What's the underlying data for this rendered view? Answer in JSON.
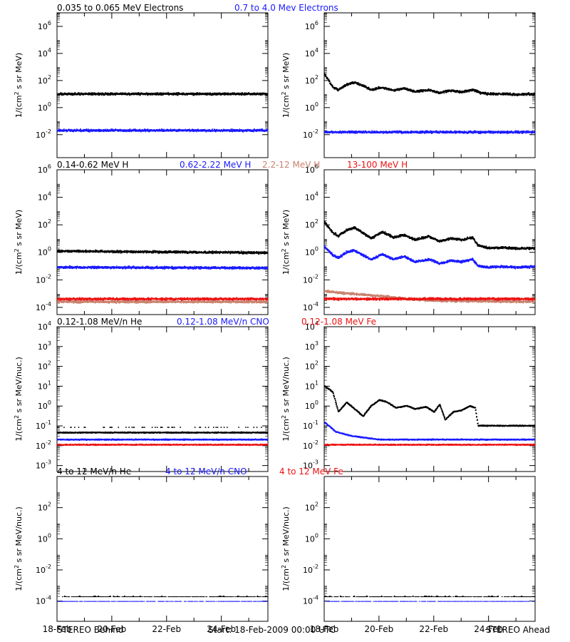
{
  "colors": {
    "black": "#000000",
    "blue": "#1a1aff",
    "tan": "#c8826e",
    "red": "#ee1111"
  },
  "headers": [
    [
      {
        "text": "0.035 to 0.065 MeV Electrons",
        "color": "black"
      },
      {
        "text": "0.7 to 4.0 Mev Electrons",
        "color": "blue"
      }
    ],
    [
      {
        "text": "0.14-0.62 MeV H",
        "color": "black"
      },
      {
        "text": "0.62-2.22 MeV H",
        "color": "blue"
      },
      {
        "text": "2.2-12 MeV H",
        "color": "tan"
      },
      {
        "text": "13-100 MeV H",
        "color": "red"
      }
    ],
    [
      {
        "text": "0.12-1.08 MeV/n He",
        "color": "black"
      },
      {
        "text": "0.12-1.08 MeV/n CNO",
        "color": "blue"
      },
      {
        "text": "0.12-1.08 MeV Fe",
        "color": "red"
      }
    ],
    [
      {
        "text": "4 to 12 MeV/n He",
        "color": "black"
      },
      {
        "text": "4 to 12 MeV/n CNO",
        "color": "blue"
      },
      {
        "text": "4 to 12 MeV Fe",
        "color": "red"
      }
    ]
  ],
  "footer": {
    "left": "STEREO Behind",
    "center": "Start: 18-Feb-2009 00:00 UTC",
    "right": "STEREO Ahead"
  },
  "chart_data": [
    {
      "type": "scatter",
      "spacecraft": "STEREO Behind",
      "ylabel": "1/(cm2 s sr MeV)",
      "scale": "log",
      "ylim": [
        0.0002,
        10000000
      ],
      "yticks": [
        "10-2",
        "100",
        "102",
        "104",
        "106"
      ],
      "x": "days since 18-Feb-2009",
      "xlim": [
        0,
        7.7
      ],
      "xticks": [
        "18-Feb",
        "20-Feb",
        "22-Feb",
        "24-Feb"
      ],
      "series": [
        {
          "name": "0.035 to 0.065 MeV Electrons",
          "color": "black",
          "anchors": [
            [
              0,
              10
            ],
            [
              7.7,
              10
            ]
          ]
        },
        {
          "name": "0.7 to 4.0 Mev Electrons",
          "color": "blue",
          "anchors": [
            [
              0,
              0.02
            ],
            [
              7.7,
              0.02
            ]
          ]
        }
      ]
    },
    {
      "type": "scatter",
      "spacecraft": "STEREO Ahead",
      "ylabel": "1/(cm2 s sr MeV)",
      "scale": "log",
      "ylim": [
        0.0002,
        10000000
      ],
      "yticks": [
        "10-2",
        "100",
        "102",
        "104",
        "106"
      ],
      "x": "days since 18-Feb-2009",
      "xlim": [
        0,
        7.7
      ],
      "xticks": [
        "18-Feb",
        "20-Feb",
        "22-Feb",
        "24-Feb"
      ],
      "series": [
        {
          "name": "0.035 to 0.065 MeV Electrons",
          "color": "black",
          "anchors": [
            [
              0,
              300
            ],
            [
              0.3,
              30
            ],
            [
              0.5,
              20
            ],
            [
              0.8,
              50
            ],
            [
              1.1,
              70
            ],
            [
              1.4,
              40
            ],
            [
              1.7,
              20
            ],
            [
              2.1,
              30
            ],
            [
              2.5,
              18
            ],
            [
              2.9,
              25
            ],
            [
              3.3,
              15
            ],
            [
              3.8,
              20
            ],
            [
              4.2,
              12
            ],
            [
              4.6,
              18
            ],
            [
              5.0,
              14
            ],
            [
              5.4,
              20
            ],
            [
              5.7,
              12
            ],
            [
              6.0,
              10
            ],
            [
              6.5,
              10
            ],
            [
              7.0,
              9
            ],
            [
              7.7,
              10
            ]
          ]
        },
        {
          "name": "0.7 to 4.0 Mev Electrons",
          "color": "blue",
          "anchors": [
            [
              0,
              0.015
            ],
            [
              7.7,
              0.015
            ]
          ]
        }
      ]
    },
    {
      "type": "scatter",
      "spacecraft": "STEREO Behind",
      "ylabel": "1/(cm2 s sr MeV)",
      "scale": "log",
      "ylim": [
        3e-05,
        1000000
      ],
      "yticks": [
        "10-4",
        "10-2",
        "100",
        "102",
        "104",
        "106"
      ],
      "x": "days since 18-Feb-2009",
      "xlim": [
        0,
        7.7
      ],
      "xticks": [
        "18-Feb",
        "20-Feb",
        "22-Feb",
        "24-Feb"
      ],
      "series": [
        {
          "name": "0.14-0.62 MeV H",
          "color": "black",
          "anchors": [
            [
              0,
              1.2
            ],
            [
              7.7,
              0.9
            ]
          ]
        },
        {
          "name": "0.62-2.22 MeV H",
          "color": "blue",
          "anchors": [
            [
              0,
              0.08
            ],
            [
              7.7,
              0.07
            ]
          ]
        },
        {
          "name": "2.2-12 MeV H",
          "color": "tan",
          "anchors": [
            [
              0,
              0.00025
            ],
            [
              7.7,
              0.00025
            ]
          ]
        },
        {
          "name": "13-100 MeV H",
          "color": "red",
          "anchors": [
            [
              0,
              0.0004
            ],
            [
              7.7,
              0.0004
            ]
          ]
        }
      ]
    },
    {
      "type": "scatter",
      "spacecraft": "STEREO Ahead",
      "ylabel": "1/(cm2 s sr MeV)",
      "scale": "log",
      "ylim": [
        3e-05,
        1000000
      ],
      "yticks": [
        "10-4",
        "10-2",
        "100",
        "102",
        "104",
        "106"
      ],
      "x": "days since 18-Feb-2009",
      "xlim": [
        0,
        7.7
      ],
      "xticks": [
        "18-Feb",
        "20-Feb",
        "22-Feb",
        "24-Feb"
      ],
      "series": [
        {
          "name": "0.14-0.62 MeV H",
          "color": "black",
          "anchors": [
            [
              0,
              150
            ],
            [
              0.3,
              25
            ],
            [
              0.5,
              15
            ],
            [
              0.8,
              40
            ],
            [
              1.1,
              60
            ],
            [
              1.4,
              25
            ],
            [
              1.7,
              10
            ],
            [
              2.1,
              30
            ],
            [
              2.5,
              12
            ],
            [
              2.9,
              18
            ],
            [
              3.3,
              8
            ],
            [
              3.8,
              14
            ],
            [
              4.2,
              6
            ],
            [
              4.6,
              10
            ],
            [
              5.0,
              8
            ],
            [
              5.4,
              12
            ],
            [
              5.6,
              3
            ],
            [
              6.0,
              2
            ],
            [
              6.5,
              2.2
            ],
            [
              7.0,
              1.8
            ],
            [
              7.7,
              2
            ]
          ]
        },
        {
          "name": "0.62-2.22 MeV H",
          "color": "blue",
          "anchors": [
            [
              0,
              2.5
            ],
            [
              0.3,
              0.6
            ],
            [
              0.5,
              0.4
            ],
            [
              0.8,
              1.0
            ],
            [
              1.1,
              1.3
            ],
            [
              1.4,
              0.6
            ],
            [
              1.7,
              0.3
            ],
            [
              2.1,
              0.7
            ],
            [
              2.5,
              0.3
            ],
            [
              2.9,
              0.5
            ],
            [
              3.3,
              0.2
            ],
            [
              3.8,
              0.3
            ],
            [
              4.2,
              0.15
            ],
            [
              4.6,
              0.25
            ],
            [
              5.0,
              0.2
            ],
            [
              5.4,
              0.3
            ],
            [
              5.6,
              0.1
            ],
            [
              6.0,
              0.08
            ],
            [
              6.5,
              0.09
            ],
            [
              7.0,
              0.08
            ],
            [
              7.7,
              0.09
            ]
          ]
        },
        {
          "name": "2.2-12 MeV H",
          "color": "tan",
          "anchors": [
            [
              0,
              0.0015
            ],
            [
              0.4,
              0.0012
            ],
            [
              0.8,
              0.001
            ],
            [
              1.5,
              0.0008
            ],
            [
              2.2,
              0.0006
            ],
            [
              3,
              0.0004
            ],
            [
              4,
              0.0003
            ],
            [
              7.7,
              0.00025
            ]
          ]
        },
        {
          "name": "13-100 MeV H",
          "color": "red",
          "anchors": [
            [
              0,
              0.0004
            ],
            [
              7.7,
              0.0004
            ]
          ]
        }
      ]
    },
    {
      "type": "scatter",
      "spacecraft": "STEREO Behind",
      "ylabel": "1/(cm2 s sr MeV/nuc.)",
      "scale": "log",
      "ylim": [
        0.0005,
        10000
      ],
      "yticks": [
        "10-3",
        "10-2",
        "10-1",
        "100",
        "101",
        "102",
        "103",
        "104"
      ],
      "x": "days since 18-Feb-2009",
      "xlim": [
        0,
        7.7
      ],
      "xticks": [
        "18-Feb",
        "20-Feb",
        "22-Feb",
        "24-Feb"
      ],
      "series": [
        {
          "name": "0.12-1.08 MeV/n He",
          "color": "black",
          "anchors": [
            [
              0,
              0.045
            ],
            [
              7.7,
              0.045
            ]
          ],
          "sparse_level": 0.09
        },
        {
          "name": "0.12-1.08 MeV/n CNO",
          "color": "blue",
          "anchors": [
            [
              0,
              0.02
            ],
            [
              7.7,
              0.02
            ]
          ]
        },
        {
          "name": "0.12-1.08 MeV Fe",
          "color": "red",
          "anchors": [
            [
              0,
              0.011
            ],
            [
              7.7,
              0.011
            ]
          ]
        }
      ]
    },
    {
      "type": "scatter",
      "spacecraft": "STEREO Ahead",
      "ylabel": "1/(cm2 s sr MeV/nuc.)",
      "scale": "log",
      "ylim": [
        0.0005,
        10000
      ],
      "yticks": [
        "10-3",
        "10-2",
        "10-1",
        "100",
        "101",
        "102",
        "103",
        "104"
      ],
      "x": "days since 18-Feb-2009",
      "xlim": [
        0,
        7.7
      ],
      "xticks": [
        "18-Feb",
        "20-Feb",
        "22-Feb",
        "24-Feb"
      ],
      "series": [
        {
          "name": "0.12-1.08 MeV/n He",
          "color": "black",
          "anchors": [
            [
              0,
              10
            ],
            [
              0.3,
              5
            ],
            [
              0.5,
              0.5
            ],
            [
              0.8,
              1.5
            ],
            [
              1.1,
              0.7
            ],
            [
              1.4,
              0.3
            ],
            [
              1.7,
              1.0
            ],
            [
              2.0,
              2.0
            ],
            [
              2.3,
              1.5
            ],
            [
              2.6,
              0.8
            ],
            [
              3.0,
              1.0
            ],
            [
              3.3,
              0.7
            ],
            [
              3.7,
              0.9
            ],
            [
              4.0,
              0.5
            ],
            [
              4.2,
              1.2
            ],
            [
              4.4,
              0.2
            ],
            [
              4.7,
              0.5
            ],
            [
              5.0,
              0.6
            ],
            [
              5.3,
              1.0
            ],
            [
              5.5,
              0.8
            ],
            [
              5.6,
              0.1
            ],
            [
              6.0,
              0.1
            ],
            [
              7.7,
              0.1
            ]
          ]
        },
        {
          "name": "0.12-1.08 MeV/n CNO",
          "color": "blue",
          "anchors": [
            [
              0,
              0.15
            ],
            [
              0.4,
              0.05
            ],
            [
              1.0,
              0.03
            ],
            [
              2.0,
              0.02
            ],
            [
              7.7,
              0.02
            ]
          ]
        },
        {
          "name": "0.12-1.08 MeV Fe",
          "color": "red",
          "anchors": [
            [
              0,
              0.011
            ],
            [
              7.7,
              0.011
            ]
          ]
        }
      ]
    },
    {
      "type": "scatter",
      "spacecraft": "STEREO Behind",
      "ylabel": "1/(cm2 s sr MeV/nuc.)",
      "scale": "log",
      "ylim": [
        5e-06,
        10000
      ],
      "yticks": [
        "10-4",
        "10-2",
        "100",
        "102"
      ],
      "x": "days since 18-Feb-2009",
      "xlim": [
        0,
        7.7
      ],
      "xticks": [
        "18-Feb",
        "20-Feb",
        "22-Feb",
        "24-Feb"
      ],
      "series": [
        {
          "name": "4 to 12 MeV/n He",
          "color": "black",
          "anchors": [
            [
              0,
              0.0002
            ],
            [
              7.7,
              0.0002
            ]
          ]
        },
        {
          "name": "4 to 12 MeV/n CNO",
          "color": "blue",
          "anchors": [
            [
              0,
              0.0001
            ],
            [
              7.7,
              0.0001
            ]
          ]
        }
      ]
    },
    {
      "type": "scatter",
      "spacecraft": "STEREO Ahead",
      "ylabel": "1/(cm2 s sr MeV/nuc.)",
      "scale": "log",
      "ylim": [
        5e-06,
        10000
      ],
      "yticks": [
        "10-4",
        "10-2",
        "100",
        "102"
      ],
      "x": "days since 18-Feb-2009",
      "xlim": [
        0,
        7.7
      ],
      "xticks": [
        "18-Feb",
        "20-Feb",
        "22-Feb",
        "24-Feb"
      ],
      "series": [
        {
          "name": "4 to 12 MeV/n He",
          "color": "black",
          "anchors": [
            [
              0,
              0.0002
            ],
            [
              7.7,
              0.0002
            ]
          ]
        },
        {
          "name": "4 to 12 MeV/n CNO",
          "color": "blue",
          "anchors": [
            [
              0,
              0.0001
            ],
            [
              7.7,
              0.0001
            ]
          ]
        }
      ]
    }
  ]
}
